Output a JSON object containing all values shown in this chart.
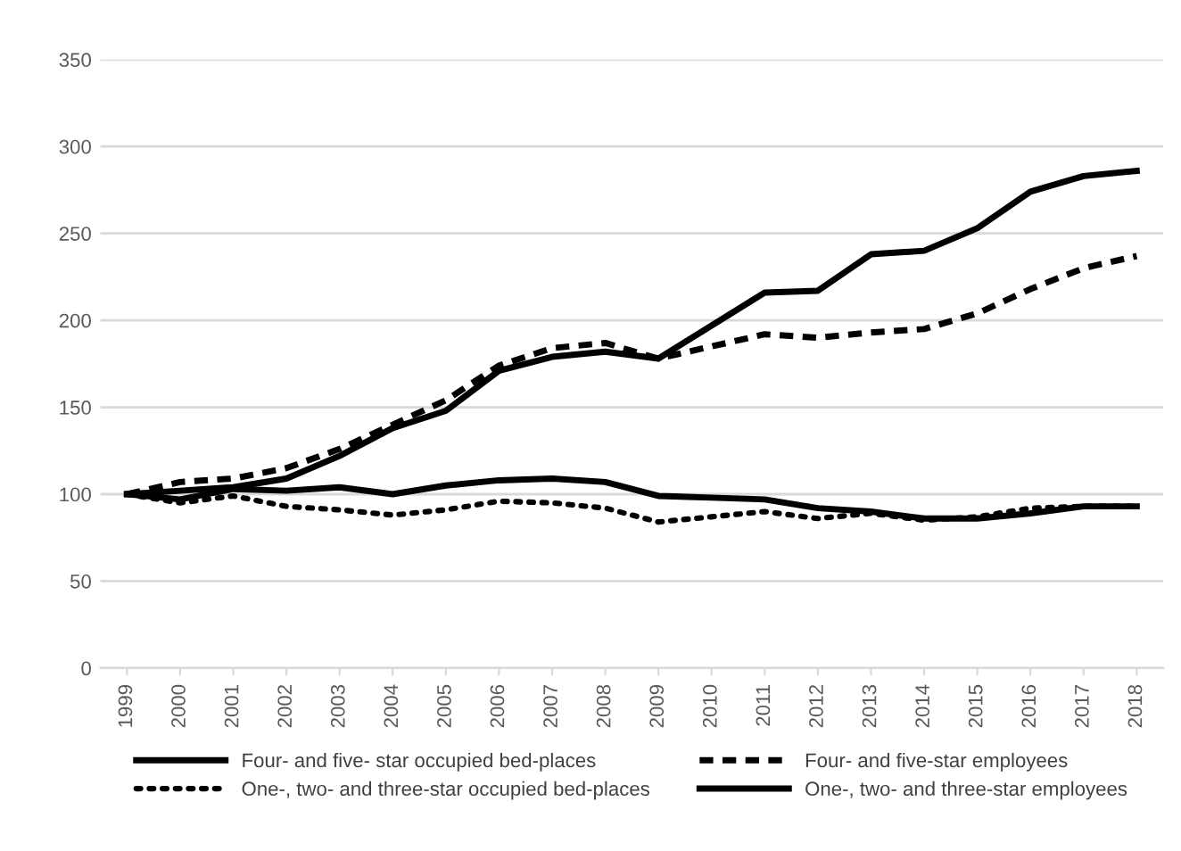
{
  "chart_data": {
    "type": "line",
    "categories": [
      "1999",
      "2000",
      "2001",
      "2002",
      "2003",
      "2004",
      "2005",
      "2006",
      "2007",
      "2008",
      "2009",
      "2010",
      "2011",
      "2012",
      "2013",
      "2014",
      "2015",
      "2016",
      "2017",
      "2018"
    ],
    "series": [
      {
        "name": "Four- and five- star occupied bed-places",
        "color": "#000000",
        "line_style": "solid",
        "values": [
          100,
          102,
          104,
          109,
          122,
          138,
          148,
          171,
          179,
          182,
          178,
          197,
          216,
          217,
          238,
          240,
          253,
          274,
          283,
          286
        ]
      },
      {
        "name": "Four- and five-star employees",
        "color": "#000000",
        "line_style": "dashed",
        "values": [
          100,
          107,
          109,
          115,
          126,
          140,
          154,
          174,
          184,
          187,
          178,
          185,
          192,
          190,
          193,
          195,
          204,
          218,
          230,
          237
        ]
      },
      {
        "name": "One-, two- and three-star occupied bed-places",
        "color": "#000000",
        "line_style": "dotted",
        "values": [
          100,
          95,
          99,
          93,
          91,
          88,
          91,
          96,
          95,
          92,
          84,
          87,
          90,
          86,
          89,
          85,
          87,
          92,
          93,
          93
        ]
      },
      {
        "name": "One-, two- and three-star employees",
        "color": "#000000",
        "line_style": "solid",
        "values": [
          100,
          97,
          103,
          102,
          104,
          100,
          105,
          108,
          109,
          107,
          99,
          98,
          97,
          92,
          90,
          86,
          86,
          89,
          93,
          93
        ]
      }
    ],
    "ylim": [
      0,
      350
    ],
    "yticks": [
      0,
      50,
      100,
      150,
      200,
      250,
      300,
      350
    ],
    "grid": "y",
    "legend": "bottom",
    "marker": "none"
  }
}
